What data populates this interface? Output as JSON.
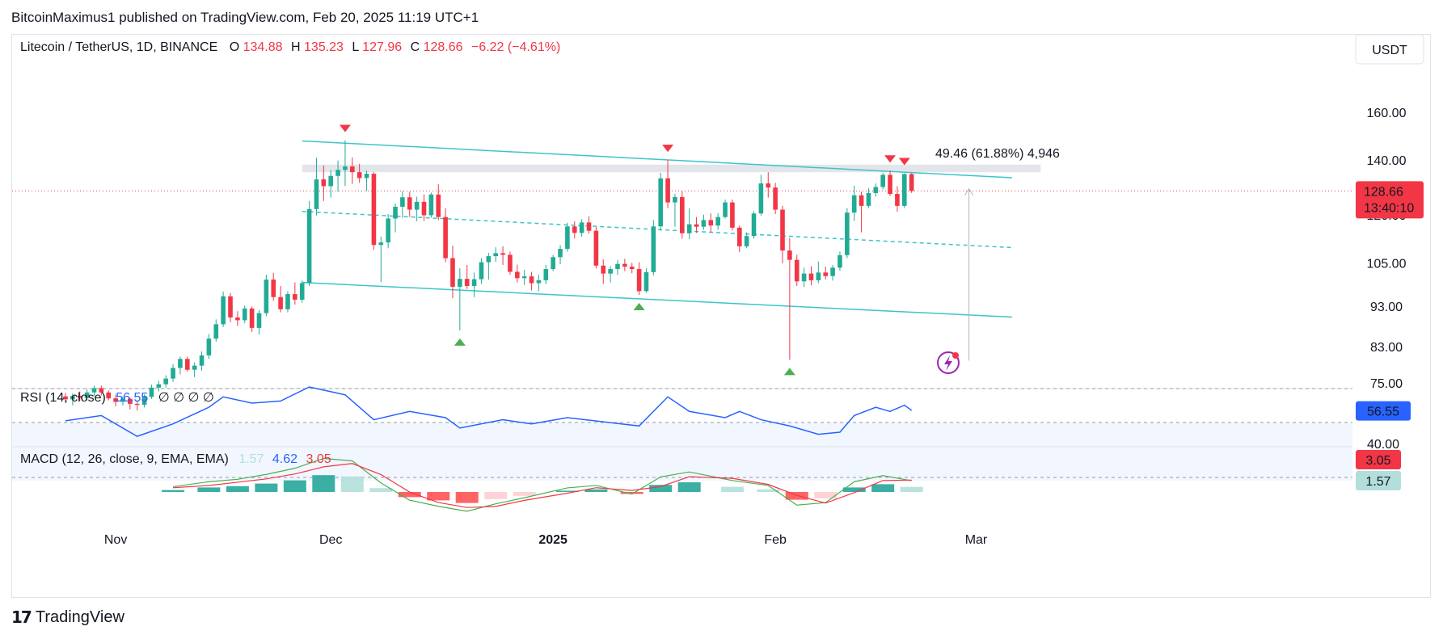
{
  "header": {
    "publish_line": "BitcoinMaximus1 published on TradingView.com, Feb 20, 2025 11:19 UTC+1",
    "footer_brand": "TradingView",
    "footer_mark": "17"
  },
  "colors": {
    "up": "#22ab94",
    "down": "#f23645",
    "channel": "#3cc5c8",
    "rsi_line": "#2962ff",
    "macd_line": "#2962ff",
    "signal_line": "#f23645",
    "hist_up_strong": "#26a69a",
    "hist_up_weak": "#b2dfdb",
    "hist_down_strong": "#ff5252",
    "hist_down_weak": "#ffcdd2",
    "marker_top": "#f23645",
    "marker_bottom": "#4caf50"
  },
  "chart_data": [
    {
      "type": "candlestick",
      "symbol_line": "Litecoin / TetherUS, 1D, BINANCE",
      "ohlc": {
        "o_label": "O",
        "o": "134.88",
        "h_label": "H",
        "h": "135.23",
        "l_label": "L",
        "l": "127.96",
        "c_label": "C",
        "c": "128.66",
        "change": "−6.22 (−4.61%)"
      },
      "currency_button": "USDT",
      "y_axis_ticks": [
        "160.00",
        "140.00",
        "120.00",
        "105.00",
        "93.00",
        "83.00",
        "75.00"
      ],
      "y_tick_values": [
        160,
        140,
        120,
        105,
        93,
        83,
        75
      ],
      "y_scale": "log",
      "ylim": [
        74,
        182
      ],
      "x_axis_labels": [
        "Nov",
        "Dec",
        "2025",
        "Feb",
        "Mar"
      ],
      "x_axis_dates": [
        "2024-11-01",
        "2024-12-01",
        "2025-01-01",
        "2025-02-01",
        "2025-03-01"
      ],
      "last_price": "128.66",
      "countdown": "13:40:10",
      "measure_label": "49.46 (61.88%) 4,946",
      "candles": [
        [
          "2024-10-25",
          72.4,
          73.1,
          71.2,
          71.8
        ],
        [
          "2024-10-26",
          71.8,
          73.0,
          70.6,
          72.5
        ],
        [
          "2024-10-27",
          72.5,
          73.4,
          71.5,
          72.1
        ],
        [
          "2024-10-28",
          72.1,
          73.8,
          71.6,
          73.2
        ],
        [
          "2024-10-29",
          73.2,
          74.6,
          72.4,
          74.1
        ],
        [
          "2024-10-30",
          74.1,
          74.6,
          72.6,
          73.2
        ],
        [
          "2024-10-31",
          73.2,
          73.6,
          71.6,
          72.0
        ],
        [
          "2024-11-01",
          72.0,
          72.8,
          70.4,
          71.3
        ],
        [
          "2024-11-02",
          71.3,
          72.4,
          70.6,
          71.9
        ],
        [
          "2024-11-03",
          71.9,
          72.2,
          69.8,
          70.9
        ],
        [
          "2024-11-04",
          70.9,
          71.6,
          69.6,
          70.7
        ],
        [
          "2024-11-05",
          70.7,
          72.8,
          70.2,
          72.3
        ],
        [
          "2024-11-06",
          72.3,
          74.8,
          71.9,
          74.2
        ],
        [
          "2024-11-07",
          74.2,
          75.6,
          73.4,
          74.9
        ],
        [
          "2024-11-08",
          74.9,
          76.8,
          74.2,
          76.1
        ],
        [
          "2024-11-09",
          76.1,
          79.2,
          75.4,
          78.4
        ],
        [
          "2024-11-10",
          78.4,
          80.9,
          77.0,
          80.4
        ],
        [
          "2024-11-11",
          80.4,
          80.9,
          77.6,
          78.0
        ],
        [
          "2024-11-12",
          78.0,
          79.6,
          76.4,
          78.9
        ],
        [
          "2024-11-13",
          78.9,
          82.1,
          77.8,
          81.2
        ],
        [
          "2024-11-14",
          81.2,
          86.2,
          80.4,
          85.1
        ],
        [
          "2024-11-15",
          85.1,
          89.8,
          84.4,
          88.6
        ],
        [
          "2024-11-16",
          88.6,
          97.1,
          87.9,
          95.8
        ],
        [
          "2024-11-17",
          95.8,
          96.7,
          89.1,
          90.3
        ],
        [
          "2024-11-18",
          90.3,
          91.9,
          88.2,
          89.6
        ],
        [
          "2024-11-19",
          89.6,
          93.4,
          88.9,
          92.6
        ],
        [
          "2024-11-20",
          92.6,
          93.1,
          86.7,
          87.7
        ],
        [
          "2024-11-21",
          87.7,
          92.2,
          86.1,
          91.4
        ],
        [
          "2024-11-22",
          91.4,
          101.8,
          90.6,
          100.4
        ],
        [
          "2024-11-23",
          100.4,
          102.3,
          94.6,
          95.6
        ],
        [
          "2024-11-24",
          95.6,
          98.6,
          91.6,
          92.4
        ],
        [
          "2024-11-25",
          92.4,
          97.2,
          91.6,
          96.4
        ],
        [
          "2024-11-26",
          96.4,
          99.6,
          93.6,
          94.9
        ],
        [
          "2024-11-27",
          94.9,
          100.1,
          94.1,
          99.4
        ],
        [
          "2024-11-28",
          99.4,
          125.1,
          98.6,
          122.3
        ],
        [
          "2024-11-29",
          122.3,
          141.2,
          120.1,
          132.9
        ],
        [
          "2024-11-30",
          132.9,
          138.2,
          125.1,
          130.4
        ],
        [
          "2024-12-01",
          130.4,
          136.4,
          126.3,
          134.2
        ],
        [
          "2024-12-02",
          134.2,
          140.1,
          128.4,
          136.5
        ],
        [
          "2024-12-03",
          136.5,
          148.3,
          130.4,
          137.8
        ],
        [
          "2024-12-04",
          137.8,
          141.3,
          131.2,
          135.6
        ],
        [
          "2024-12-05",
          135.6,
          138.8,
          131.6,
          133.4
        ],
        [
          "2024-12-06",
          133.4,
          136.2,
          128.6,
          135.0
        ],
        [
          "2024-12-07",
          135.0,
          135.6,
          109.1,
          110.6
        ],
        [
          "2024-12-08",
          110.6,
          113.2,
          99.7,
          111.4
        ],
        [
          "2024-12-09",
          111.4,
          120.6,
          109.6,
          119.1
        ],
        [
          "2024-12-10",
          119.1,
          124.2,
          114.6,
          123.1
        ],
        [
          "2024-12-11",
          123.1,
          128.6,
          119.4,
          126.4
        ],
        [
          "2024-12-12",
          126.4,
          128.4,
          119.6,
          122.1
        ],
        [
          "2024-12-13",
          122.1,
          126.6,
          118.2,
          124.8
        ],
        [
          "2024-12-14",
          124.8,
          127.4,
          118.3,
          120.2
        ],
        [
          "2024-12-15",
          120.2,
          128.1,
          119.4,
          127.4
        ],
        [
          "2024-12-16",
          127.4,
          131.1,
          118.6,
          119.6
        ],
        [
          "2024-12-17",
          119.6,
          122.6,
          105.4,
          106.6
        ],
        [
          "2024-12-18",
          106.6,
          110.4,
          95.3,
          98.4
        ],
        [
          "2024-12-19",
          98.4,
          103.6,
          87.1,
          100.6
        ],
        [
          "2024-12-20",
          100.6,
          104.6,
          97.8,
          98.6
        ],
        [
          "2024-12-21",
          98.6,
          102.4,
          95.6,
          100.5
        ],
        [
          "2024-12-22",
          100.5,
          106.6,
          99.2,
          105.4
        ],
        [
          "2024-12-23",
          105.4,
          108.2,
          100.4,
          107.2
        ],
        [
          "2024-12-24",
          107.2,
          109.9,
          105.5,
          108.1
        ],
        [
          "2024-12-25",
          108.1,
          110.2,
          104.6,
          107.6
        ],
        [
          "2024-12-26",
          107.6,
          108.6,
          101.8,
          102.6
        ],
        [
          "2024-12-27",
          102.6,
          104.7,
          99.6,
          100.8
        ],
        [
          "2024-12-28",
          100.8,
          103.2,
          98.9,
          101.3
        ],
        [
          "2024-12-29",
          101.3,
          102.6,
          97.4,
          99.4
        ],
        [
          "2024-12-30",
          99.4,
          101.8,
          97.2,
          100.2
        ],
        [
          "2024-12-31",
          100.2,
          104.6,
          99.1,
          103.4
        ],
        [
          "2025-01-01",
          103.4,
          107.6,
          102.8,
          106.9
        ],
        [
          "2025-01-02",
          106.9,
          110.6,
          104.8,
          109.4
        ],
        [
          "2025-01-03",
          109.4,
          117.7,
          108.6,
          116.5
        ],
        [
          "2025-01-04",
          116.5,
          118.2,
          112.6,
          114.4
        ],
        [
          "2025-01-05",
          114.4,
          118.9,
          113.2,
          117.8
        ],
        [
          "2025-01-06",
          117.8,
          119.9,
          114.2,
          115.1
        ],
        [
          "2025-01-07",
          115.1,
          116.3,
          103.6,
          104.4
        ],
        [
          "2025-01-08",
          104.4,
          106.2,
          99.2,
          102.1
        ],
        [
          "2025-01-09",
          102.1,
          104.3,
          99.6,
          103.4
        ],
        [
          "2025-01-10",
          103.4,
          106.1,
          101.7,
          104.9
        ],
        [
          "2025-01-11",
          104.9,
          106.4,
          102.8,
          104.1
        ],
        [
          "2025-01-12",
          104.1,
          105.2,
          102.2,
          103.4
        ],
        [
          "2025-01-13",
          103.4,
          105.4,
          96.2,
          97.2
        ],
        [
          "2025-01-14",
          97.2,
          103.6,
          96.8,
          102.5
        ],
        [
          "2025-01-15",
          102.5,
          118.6,
          101.6,
          116.5
        ],
        [
          "2025-01-16",
          116.5,
          135.4,
          115.1,
          133.3
        ],
        [
          "2025-01-17",
          133.3,
          140.3,
          122.6,
          124.6
        ],
        [
          "2025-01-18",
          124.6,
          127.6,
          116.4,
          126.5
        ],
        [
          "2025-01-19",
          126.5,
          128.6,
          112.6,
          114.3
        ],
        [
          "2025-01-20",
          114.3,
          122.6,
          112.4,
          117.2
        ],
        [
          "2025-01-21",
          117.2,
          119.6,
          114.4,
          116.4
        ],
        [
          "2025-01-22",
          116.4,
          120.4,
          115.4,
          118.6
        ],
        [
          "2025-01-23",
          118.6,
          120.8,
          114.6,
          116.8
        ],
        [
          "2025-01-24",
          116.8,
          120.9,
          115.4,
          119.6
        ],
        [
          "2025-01-25",
          119.6,
          125.6,
          119.1,
          124.6
        ],
        [
          "2025-01-26",
          124.6,
          125.6,
          115.2,
          116.1
        ],
        [
          "2025-01-27",
          116.1,
          116.8,
          108.4,
          110.2
        ],
        [
          "2025-01-28",
          110.2,
          114.6,
          109.6,
          113.4
        ],
        [
          "2025-01-29",
          113.4,
          121.6,
          112.6,
          120.8
        ],
        [
          "2025-01-30",
          120.8,
          134.6,
          120.1,
          131.4
        ],
        [
          "2025-01-31",
          131.4,
          135.6,
          126.3,
          129.9
        ],
        [
          "2025-02-01",
          129.9,
          131.6,
          120.6,
          122.1
        ],
        [
          "2025-02-02",
          122.1,
          123.4,
          105.1,
          108.9
        ],
        [
          "2025-02-03",
          108.9,
          112.8,
          80.2,
          106.1
        ],
        [
          "2025-02-04",
          106.1,
          107.6,
          98.6,
          99.9
        ],
        [
          "2025-02-05",
          99.9,
          103.8,
          98.3,
          102.1
        ],
        [
          "2025-02-06",
          102.1,
          104.2,
          98.8,
          100.2
        ],
        [
          "2025-02-07",
          100.2,
          105.6,
          99.4,
          102.4
        ],
        [
          "2025-02-08",
          102.4,
          104.1,
          100.4,
          101.4
        ],
        [
          "2025-02-09",
          101.4,
          104.6,
          100.1,
          103.8
        ],
        [
          "2025-02-10",
          103.8,
          108.6,
          102.9,
          107.5
        ],
        [
          "2025-02-11",
          107.5,
          122.6,
          106.6,
          121.1
        ],
        [
          "2025-02-12",
          121.1,
          130.6,
          118.3,
          127.1
        ],
        [
          "2025-02-13",
          127.1,
          128.4,
          114.6,
          123.4
        ],
        [
          "2025-02-14",
          123.4,
          129.6,
          122.6,
          127.9
        ],
        [
          "2025-02-15",
          127.9,
          131.4,
          126.6,
          130.1
        ],
        [
          "2025-02-16",
          130.1,
          135.4,
          129.2,
          134.6
        ],
        [
          "2025-02-17",
          134.6,
          136.2,
          126.8,
          127.6
        ],
        [
          "2025-02-18",
          127.6,
          130.4,
          121.4,
          123.4
        ],
        [
          "2025-02-19",
          123.4,
          135.2,
          122.6,
          134.9
        ],
        [
          "2025-02-20",
          134.88,
          135.23,
          127.96,
          128.66
        ]
      ],
      "channel_lines": [
        {
          "role": "upper",
          "points": [
            [
              "2024-11-27",
              148.0
            ],
            [
              "2025-03-06",
              133.5
            ]
          ],
          "style": "solid"
        },
        {
          "role": "middle",
          "points": [
            [
              "2024-11-27",
              121.5
            ],
            [
              "2025-03-06",
              109.8
            ]
          ],
          "style": "dashed"
        },
        {
          "role": "lower",
          "points": [
            [
              "2024-11-27",
              99.6
            ],
            [
              "2025-03-06",
              90.4
            ]
          ],
          "style": "solid"
        }
      ],
      "resistance_zone": {
        "from": "2024-11-27",
        "to": "2025-03-10",
        "y_low": 135.6,
        "y_high": 138.5
      },
      "markers_top": [
        "2024-12-03",
        "2025-01-17",
        "2025-02-17",
        "2025-02-19"
      ],
      "markers_bottom": [
        "2024-12-19",
        "2025-01-13",
        "2025-02-03"
      ],
      "measure_tool": {
        "date": "2025-02-28",
        "from": 80.0,
        "to": 129.46
      }
    },
    {
      "type": "line",
      "name": "RSI",
      "label": "RSI (14, close)",
      "value": "56.55",
      "flags": "∅ ∅ ∅ ∅",
      "axis_label": "40.00",
      "levels": [
        70,
        30
      ],
      "ylim": [
        22,
        78
      ],
      "x": [
        "2024-10-25",
        "2024-10-30",
        "2024-11-04",
        "2024-11-09",
        "2024-11-14",
        "2024-11-16",
        "2024-11-20",
        "2024-11-24",
        "2024-11-28",
        "2024-12-03",
        "2024-12-07",
        "2024-12-12",
        "2024-12-17",
        "2024-12-19",
        "2024-12-25",
        "2024-12-29",
        "2025-01-03",
        "2025-01-08",
        "2025-01-13",
        "2025-01-17",
        "2025-01-20",
        "2025-01-25",
        "2025-01-27",
        "2025-01-30",
        "2025-02-03",
        "2025-02-07",
        "2025-02-10",
        "2025-02-12",
        "2025-02-15",
        "2025-02-17",
        "2025-02-19",
        "2025-02-20"
      ],
      "y": [
        47,
        52,
        32,
        44,
        60,
        70,
        64,
        66,
        90,
        72,
        48,
        56,
        50,
        40,
        48,
        44,
        50,
        46,
        42,
        70,
        56,
        50,
        56,
        48,
        42,
        34,
        36,
        52,
        60,
        56,
        62,
        57
      ]
    },
    {
      "type": "line",
      "name": "MACD",
      "label": "MACD (12, 26, close, 9, EMA, EMA)",
      "values": {
        "hist": "1.57",
        "macd": "4.62",
        "signal": "3.05"
      },
      "axis_labels": [
        "3.05",
        "1.57"
      ],
      "ylim": [
        -6,
        14
      ],
      "histogram": [
        [
          "2024-11-09",
          0.6
        ],
        [
          "2024-11-14",
          1.4
        ],
        [
          "2024-11-18",
          1.8
        ],
        [
          "2024-11-22",
          2.6
        ],
        [
          "2024-11-26",
          3.6
        ],
        [
          "2024-11-30",
          5.2
        ],
        [
          "2024-12-04",
          4.8
        ],
        [
          "2024-12-08",
          1.2
        ],
        [
          "2024-12-12",
          -1.6
        ],
        [
          "2024-12-16",
          -2.6
        ],
        [
          "2024-12-20",
          -3.4
        ],
        [
          "2024-12-24",
          -2.2
        ],
        [
          "2024-12-28",
          -1.2
        ],
        [
          "2025-01-03",
          0.4
        ],
        [
          "2025-01-07",
          0.8
        ],
        [
          "2025-01-12",
          -0.6
        ],
        [
          "2025-01-16",
          2.2
        ],
        [
          "2025-01-20",
          3.0
        ],
        [
          "2025-01-26",
          1.6
        ],
        [
          "2025-01-31",
          0.8
        ],
        [
          "2025-02-04",
          -2.4
        ],
        [
          "2025-02-08",
          -2.0
        ],
        [
          "2025-02-12",
          1.4
        ],
        [
          "2025-02-16",
          2.4
        ],
        [
          "2025-02-20",
          1.57
        ]
      ]
    }
  ]
}
